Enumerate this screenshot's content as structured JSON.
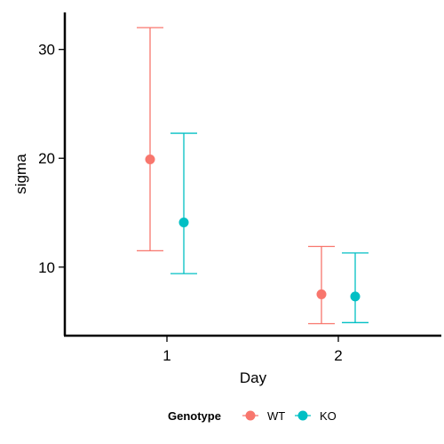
{
  "chart_data": {
    "type": "scatter",
    "title": "",
    "xlabel": "Day",
    "ylabel": "sigma",
    "categories": [
      "1",
      "2"
    ],
    "yticks": [
      10,
      20,
      30
    ],
    "ylim": [
      3.7,
      33.4
    ],
    "grid": false,
    "legend": {
      "title": "Genotype",
      "position": "bottom"
    },
    "series": [
      {
        "name": "WT",
        "color": "#F8766D",
        "points": [
          {
            "x": "1",
            "y": 19.9,
            "ymin": 11.5,
            "ymax": 32.0
          },
          {
            "x": "2",
            "y": 7.5,
            "ymin": 4.8,
            "ymax": 11.9
          }
        ]
      },
      {
        "name": "KO",
        "color": "#00BFC4",
        "points": [
          {
            "x": "1",
            "y": 14.1,
            "ymin": 9.4,
            "ymax": 22.3
          },
          {
            "x": "2",
            "y": 7.3,
            "ymin": 4.9,
            "ymax": 11.3
          }
        ]
      }
    ]
  }
}
